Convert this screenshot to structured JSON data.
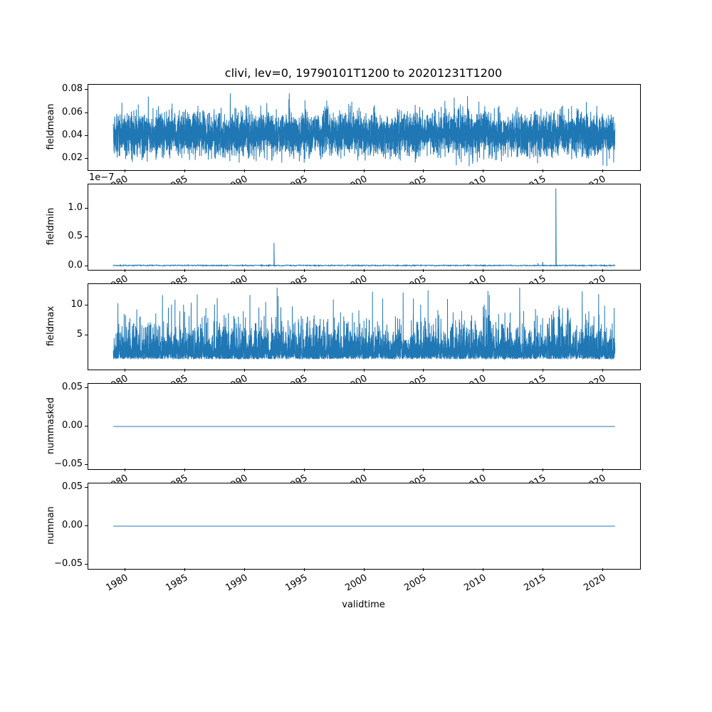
{
  "title": "clivi, lev=0, 19790101T1200 to 20201231T1200",
  "chart_data": {
    "type": "line",
    "title": "clivi, lev=0, 19790101T1200 to 20201231T1200",
    "xlabel": "validtime",
    "line_color": "#1f77b4",
    "grid": false,
    "legend": "none",
    "x_range": [
      1979.0,
      2021.0
    ],
    "xlim": [
      1976.9,
      2023.1
    ],
    "xticks": [
      1980,
      1985,
      1990,
      1995,
      2000,
      2005,
      2010,
      2015,
      2020
    ],
    "xtick_labels": [
      "1980",
      "1985",
      "1990",
      "1995",
      "2000",
      "2005",
      "2010",
      "2015",
      "2020"
    ],
    "xtick_rotation_deg": 30,
    "subplots": [
      {
        "ylabel": "fieldmean",
        "ylim": [
          0.01,
          0.0845
        ],
        "yticks": [
          0.02,
          0.04,
          0.06,
          0.08
        ],
        "ytick_labels": [
          "0.02",
          "0.04",
          "0.06",
          "0.08"
        ],
        "series": {
          "kind": "noise",
          "description": "dense noisy daily series, band ~0.014-0.081, mean ~0.04",
          "n": 6000,
          "seed": 42,
          "base": 0.041,
          "amp": 0.016,
          "min": 0.0135,
          "max": 0.081
        }
      },
      {
        "ylabel": "fieldmin",
        "offset_text": "1e−7",
        "y_unit": "1e-7",
        "ylim": [
          -0.068,
          1.418
        ],
        "yticks": [
          0.0,
          0.5,
          1.0
        ],
        "ytick_labels": [
          "0.0",
          "0.5",
          "1.0"
        ],
        "series": {
          "kind": "baseline_spikes",
          "description": "near-zero baseline with isolated spikes (values in 1e-7 units)",
          "n": 1400,
          "seed": 7,
          "base": 0.008,
          "amp": 0.01,
          "spikes": [
            {
              "x": 1992.45,
              "v": 0.4
            },
            {
              "x": 2014.55,
              "v": 0.05
            },
            {
              "x": 2014.95,
              "v": 0.07
            },
            {
              "x": 2016.05,
              "v": 1.35
            }
          ]
        }
      },
      {
        "ylabel": "fieldmax",
        "ylim": [
          -0.6,
          13.5
        ],
        "yticks": [
          5,
          10
        ],
        "ytick_labels": [
          "5",
          "10"
        ],
        "series": {
          "kind": "spiky_noise",
          "description": "dense noisy series ~1-6 with spikes up to ~12.5",
          "n": 6000,
          "seed": 13,
          "base": 1.1,
          "scale": 1.7,
          "max": 12.9
        }
      },
      {
        "ylabel": "nummasked",
        "ylim": [
          -0.056,
          0.056
        ],
        "yticks": [
          -0.05,
          0.0,
          0.05
        ],
        "ytick_labels": [
          "−0.05",
          "0.00",
          "0.05"
        ],
        "series": {
          "kind": "constant",
          "description": "flat line at zero",
          "value": 0.0
        }
      },
      {
        "ylabel": "numnan",
        "ylim": [
          -0.056,
          0.056
        ],
        "yticks": [
          -0.05,
          0.0,
          0.05
        ],
        "ytick_labels": [
          "−0.05",
          "0.00",
          "0.05"
        ],
        "series": {
          "kind": "constant",
          "description": "flat line at zero",
          "value": 0.0
        }
      }
    ]
  }
}
